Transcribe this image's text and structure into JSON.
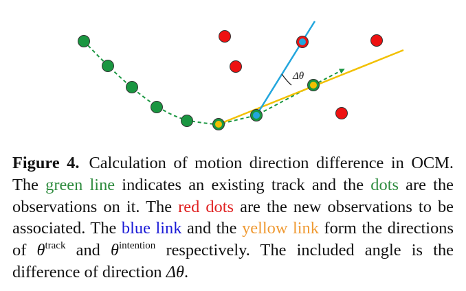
{
  "diagram": {
    "angle_label": "Δθ",
    "colors": {
      "track": "#1a9641",
      "red": "#ee1111",
      "blue": "#22a6dd",
      "yellow": "#f2c000",
      "outline": "#333333"
    }
  },
  "caption": {
    "label": "Figure 4.",
    "s1": "Calculation of motion direction difference in OCM. The ",
    "green_line": "green line",
    "s2": " indicates an existing track and the ",
    "dots": "dots",
    "s3": " are the observations on it.  The ",
    "red_dots": "red dots",
    "s4": " are the new observations to be associated. The ",
    "blue_link": "blue link",
    "s5": " and the ",
    "yellow_link": "yellow link",
    "s6": " form the directions of ",
    "theta1": "θ",
    "sup_track": "track",
    "s7": " and ",
    "theta2": "θ",
    "sup_intention": "intention",
    "s8": " respectively. The included angle is the difference of direction ",
    "delta_theta": "Δθ",
    "s9": "."
  }
}
